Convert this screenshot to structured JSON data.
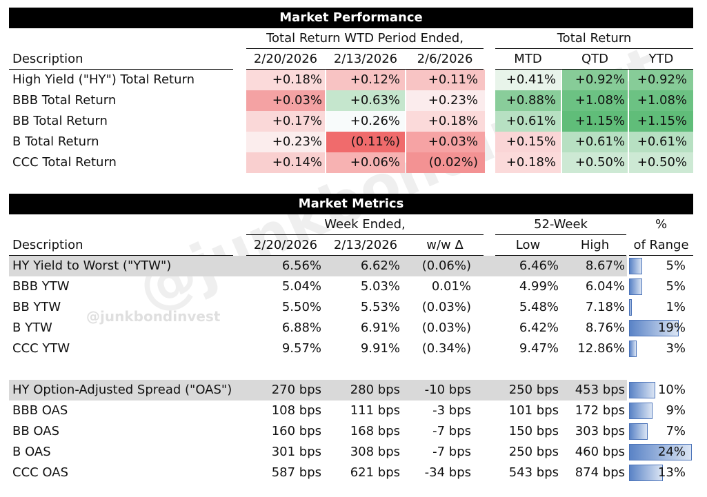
{
  "watermark": "@junkbondinvest",
  "performance": {
    "title": "Market Performance",
    "group_wtd": "Total Return WTD Period Ended,",
    "group_total": "Total Return",
    "desc_header": "Description",
    "columns": [
      "2/20/2026",
      "2/13/2026",
      "2/6/2026",
      "MTD",
      "QTD",
      "YTD"
    ],
    "rows": [
      {
        "label": "High Yield (\"HY\") Total Return",
        "values": [
          "+0.18%",
          "+0.12%",
          "+0.11%",
          "+0.41%",
          "+0.92%",
          "+0.92%"
        ],
        "colors": [
          "#fbdada",
          "#f8c3c3",
          "#f8c4c4",
          "#e8f4ea",
          "#87cc98",
          "#87cc98"
        ]
      },
      {
        "label": "BBB Total Return",
        "values": [
          "+0.03%",
          "+0.63%",
          "+0.23%",
          "+0.88%",
          "+1.08%",
          "+1.08%"
        ],
        "colors": [
          "#f4a2a3",
          "#c5e6cd",
          "#fbeced",
          "#89cd9a",
          "#6cc283",
          "#6cc283"
        ]
      },
      {
        "label": "BB Total Return",
        "values": [
          "+0.17%",
          "+0.26%",
          "+0.18%",
          "+0.61%",
          "+1.15%",
          "+1.15%"
        ],
        "colors": [
          "#fad8d8",
          "#f8fbfb",
          "#fbdada",
          "#b7e0c2",
          "#60bd79",
          "#60bd79"
        ]
      },
      {
        "label": "B Total Return",
        "values": [
          "+0.23%",
          "(0.11%)",
          "+0.03%",
          "+0.15%",
          "+0.61%",
          "+0.61%"
        ],
        "colors": [
          "#fbeded",
          "#f06b6c",
          "#f6a3a4",
          "#fad5d6",
          "#b7e0c2",
          "#b7e0c2"
        ]
      },
      {
        "label": "CCC Total Return",
        "values": [
          "+0.14%",
          "+0.06%",
          "(0.02%)",
          "+0.18%",
          "+0.50%",
          "+0.50%"
        ],
        "colors": [
          "#f9cfcf",
          "#f7b2b2",
          "#f39293",
          "#fbdada",
          "#cde9d4",
          "#cde9d4"
        ]
      }
    ]
  },
  "metrics": {
    "title": "Market Metrics",
    "group_week": "Week Ended,",
    "group_52": "52-Week",
    "group_pct": "%",
    "desc_header": "Description",
    "columns": [
      "2/20/2026",
      "2/13/2026",
      "w/w Δ",
      "Low",
      "High",
      "of Range"
    ],
    "ytw_rows": [
      {
        "label": "HY Yield to Worst (\"YTW\")",
        "values": [
          "6.56%",
          "6.62%",
          "(0.06%)",
          "6.46%",
          "8.67%"
        ],
        "range": "5%",
        "range_frac": 0.05,
        "shaded": true
      },
      {
        "label": "BBB YTW",
        "values": [
          "5.04%",
          "5.03%",
          "0.01%",
          "4.99%",
          "6.04%"
        ],
        "range": "5%",
        "range_frac": 0.05,
        "shaded": false
      },
      {
        "label": "BB YTW",
        "values": [
          "5.50%",
          "5.53%",
          "(0.03%)",
          "5.48%",
          "7.18%"
        ],
        "range": "1%",
        "range_frac": 0.01,
        "shaded": false
      },
      {
        "label": "B YTW",
        "values": [
          "6.88%",
          "6.91%",
          "(0.03%)",
          "6.42%",
          "8.76%"
        ],
        "range": "19%",
        "range_frac": 0.19,
        "shaded": false
      },
      {
        "label": "CCC YTW",
        "values": [
          "9.57%",
          "9.91%",
          "(0.34%)",
          "9.47%",
          "12.86%"
        ],
        "range": "3%",
        "range_frac": 0.03,
        "shaded": false
      }
    ],
    "oas_rows": [
      {
        "label": "HY Option-Adjusted Spread (\"OAS\")",
        "values": [
          "270 bps",
          "280 bps",
          "-10 bps",
          "250 bps",
          "453 bps"
        ],
        "range": "10%",
        "range_frac": 0.1,
        "shaded": true
      },
      {
        "label": "BBB OAS",
        "values": [
          "108 bps",
          "111 bps",
          "-3 bps",
          "101 bps",
          "172 bps"
        ],
        "range": "9%",
        "range_frac": 0.09,
        "shaded": false
      },
      {
        "label": "BB OAS",
        "values": [
          "160 bps",
          "168 bps",
          "-7 bps",
          "150 bps",
          "303 bps"
        ],
        "range": "7%",
        "range_frac": 0.07,
        "shaded": false
      },
      {
        "label": "B OAS",
        "values": [
          "301 bps",
          "308 bps",
          "-7 bps",
          "250 bps",
          "460 bps"
        ],
        "range": "24%",
        "range_frac": 0.24,
        "shaded": false
      },
      {
        "label": "CCC OAS",
        "values": [
          "587 bps",
          "621 bps",
          "-34 bps",
          "543 bps",
          "874 bps"
        ],
        "range": "13%",
        "range_frac": 0.13,
        "shaded": false
      }
    ]
  }
}
